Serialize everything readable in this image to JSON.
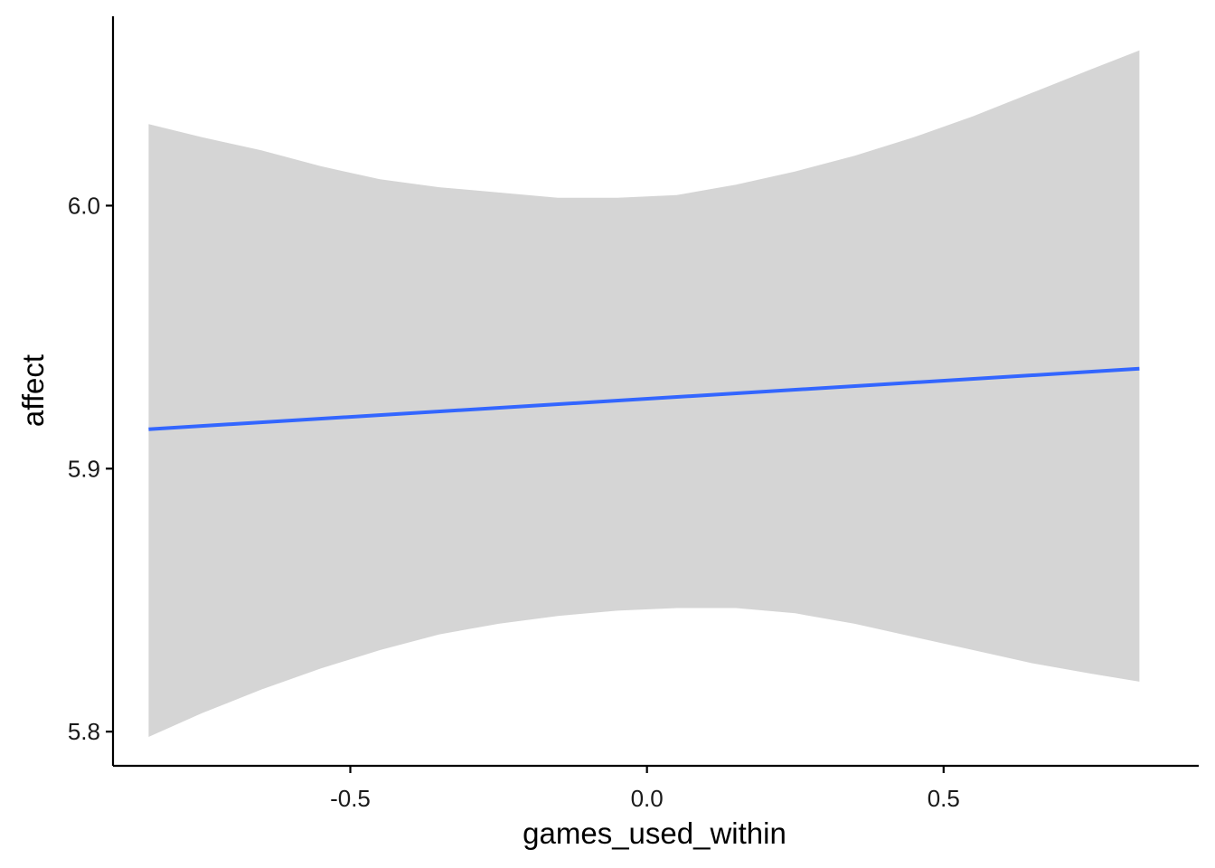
{
  "chart_data": {
    "type": "line",
    "title": "",
    "xlabel": "games_used_within",
    "ylabel": "affect",
    "xlim": [
      -0.9,
      0.93
    ],
    "ylim": [
      5.787,
      6.072
    ],
    "x_ticks": [
      -0.5,
      0.0,
      0.5
    ],
    "x_tick_labels": [
      "-0.5",
      "0.0",
      "0.5"
    ],
    "y_ticks": [
      5.8,
      5.9,
      6.0
    ],
    "y_tick_labels": [
      "5.8",
      "5.9",
      "6.0"
    ],
    "grid": false,
    "legend": "none",
    "series": [
      {
        "kind": "fit-line",
        "color": "#3366FF",
        "x": [
          -0.84,
          0.83
        ],
        "y": [
          5.915,
          5.938
        ]
      },
      {
        "kind": "confidence-band",
        "color": "#D5D5D5",
        "x": [
          -0.84,
          -0.75,
          -0.65,
          -0.55,
          -0.45,
          -0.35,
          -0.25,
          -0.15,
          -0.05,
          0.05,
          0.15,
          0.25,
          0.35,
          0.45,
          0.55,
          0.65,
          0.75,
          0.83
        ],
        "upper": [
          6.031,
          6.026,
          6.021,
          6.015,
          6.01,
          6.007,
          6.005,
          6.003,
          6.003,
          6.004,
          6.008,
          6.013,
          6.019,
          6.026,
          6.034,
          6.043,
          6.052,
          6.059
        ],
        "lower": [
          5.798,
          5.807,
          5.816,
          5.824,
          5.831,
          5.837,
          5.841,
          5.844,
          5.846,
          5.847,
          5.847,
          5.845,
          5.841,
          5.836,
          5.831,
          5.826,
          5.822,
          5.819
        ]
      }
    ]
  }
}
